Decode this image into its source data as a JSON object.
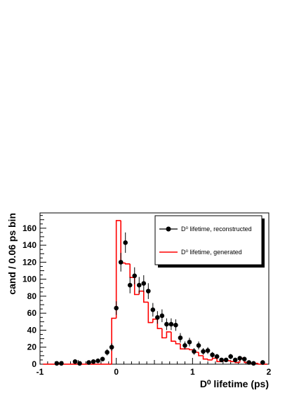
{
  "chart_data": {
    "type": "scatter",
    "xlabel": "D⁰ lifetime (ps)",
    "ylabel": "cand / 0.06 ps bin",
    "xlim": [
      -1,
      2
    ],
    "ylim": [
      0,
      178
    ],
    "x_ticks": [
      "-1",
      "0",
      "1",
      "2"
    ],
    "y_ticks": [
      "0",
      "20",
      "40",
      "60",
      "80",
      "100",
      "120",
      "140",
      "160"
    ],
    "legend_position": "top-right",
    "grid": false,
    "series": [
      {
        "name": "D⁰ lifetime, reconstructed",
        "style": "points-with-error-bars",
        "color": "#000000",
        "x": [
          -0.78,
          -0.72,
          -0.54,
          -0.48,
          -0.36,
          -0.3,
          -0.24,
          -0.18,
          -0.12,
          -0.06,
          0.0,
          0.06,
          0.12,
          0.18,
          0.24,
          0.3,
          0.36,
          0.42,
          0.48,
          0.54,
          0.6,
          0.66,
          0.72,
          0.78,
          0.84,
          0.9,
          0.96,
          1.02,
          1.08,
          1.14,
          1.2,
          1.26,
          1.32,
          1.38,
          1.44,
          1.5,
          1.56,
          1.62,
          1.68,
          1.74,
          1.8,
          1.92
        ],
        "y": [
          1,
          1,
          3,
          1,
          2,
          3,
          4,
          6,
          14,
          20,
          66,
          120,
          143,
          93,
          104,
          93,
          95,
          86,
          64,
          55,
          57,
          47,
          47,
          46,
          31,
          22,
          26,
          15,
          22,
          15,
          16,
          11,
          9,
          5,
          5,
          9,
          5,
          7,
          6,
          2,
          1,
          2
        ],
        "yerr": [
          1,
          1,
          2,
          1,
          1.5,
          2,
          2,
          2.5,
          3.7,
          4.5,
          8,
          11,
          12,
          9.6,
          10,
          9.6,
          9.7,
          9.3,
          8,
          7.4,
          7.5,
          6.9,
          6.9,
          6.8,
          5.6,
          4.7,
          5.1,
          3.9,
          4.7,
          3.9,
          4,
          3.3,
          3,
          2.2,
          2.2,
          3,
          2.2,
          2.6,
          2.4,
          1.4,
          1,
          1.4
        ]
      },
      {
        "name": "D⁰ lifetime, generated",
        "style": "step-histogram",
        "color": "#ff0000",
        "bin_edges": [
          -0.96,
          -0.9,
          -0.84,
          -0.78,
          -0.72,
          -0.66,
          -0.6,
          -0.54,
          -0.48,
          -0.42,
          -0.36,
          -0.3,
          -0.24,
          -0.18,
          -0.12,
          -0.06,
          0.0,
          0.06,
          0.12,
          0.18,
          0.24,
          0.3,
          0.36,
          0.42,
          0.48,
          0.54,
          0.6,
          0.66,
          0.72,
          0.78,
          0.84,
          0.9,
          0.96,
          1.02,
          1.08,
          1.14,
          1.2,
          1.26,
          1.32,
          1.38,
          1.44,
          1.5,
          1.56,
          1.62,
          1.68,
          1.74,
          1.8,
          1.86,
          1.92,
          1.98
        ],
        "values": [
          0,
          0,
          0,
          0,
          0,
          0,
          0,
          0,
          0,
          0,
          0,
          0,
          0,
          0,
          0,
          54,
          169,
          119,
          118,
          102,
          82,
          86,
          73,
          49,
          53,
          42,
          31,
          38,
          27,
          24,
          18,
          18,
          17,
          14,
          10,
          6,
          5,
          7,
          3,
          4,
          4,
          3,
          2,
          7,
          2,
          1,
          1,
          0,
          0
        ]
      }
    ]
  }
}
